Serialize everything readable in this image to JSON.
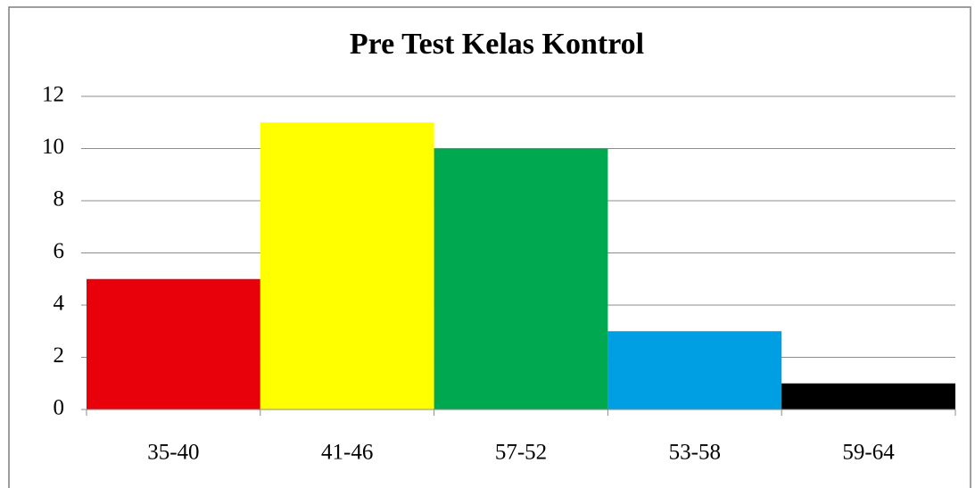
{
  "chart_data": {
    "type": "bar",
    "title": "Pre Test Kelas Kontrol",
    "categories": [
      "35-40",
      "41-46",
      "57-52",
      "53-58",
      "59-64"
    ],
    "values": [
      5,
      11,
      10,
      3,
      1
    ],
    "colors": [
      "#e8000b",
      "#ffff00",
      "#00a84f",
      "#009fe3",
      "#000000"
    ],
    "ylim": [
      0,
      12
    ],
    "yticks": [
      0,
      2,
      4,
      6,
      8,
      10,
      12
    ],
    "grid": true
  }
}
